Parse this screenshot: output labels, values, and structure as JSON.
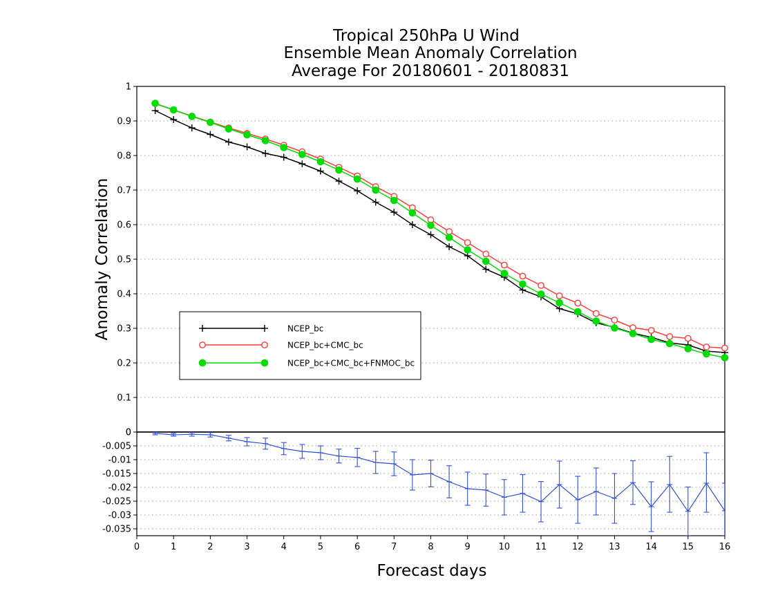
{
  "chart_data": [
    {
      "type": "line",
      "title": [
        "Tropical 250hPa U Wind",
        "Ensemble Mean Anomaly Correlation",
        "Average For 20180601 - 20180831"
      ],
      "xlabel": "Forecast days",
      "ylabel": "Anomaly Correlation",
      "xlim": [
        0,
        16
      ],
      "ylim": [
        0,
        1
      ],
      "x_ticks": [
        "0",
        "1",
        "2",
        "3",
        "4",
        "5",
        "6",
        "7",
        "8",
        "9",
        "10",
        "11",
        "12",
        "13",
        "14",
        "15",
        "16"
      ],
      "y_ticks": [
        "0",
        "0.1",
        "0.2",
        "0.3",
        "0.4",
        "0.5",
        "0.6",
        "0.7",
        "0.8",
        "0.9",
        "1"
      ],
      "grid": "horizontal dotted",
      "legend_position": "left-center",
      "x": [
        0.5,
        1,
        1.5,
        2,
        2.5,
        3,
        3.5,
        4,
        4.5,
        5,
        5.5,
        6,
        6.5,
        7,
        7.5,
        8,
        8.5,
        9,
        9.5,
        10,
        10.5,
        11,
        11.5,
        12,
        12.5,
        13,
        13.5,
        14,
        14.5,
        15,
        15.5,
        16
      ],
      "series": [
        {
          "name": "NCEP_bc",
          "color": "#000000",
          "marker": "plus",
          "values": [
            0.93,
            0.904,
            0.88,
            0.861,
            0.839,
            0.825,
            0.806,
            0.795,
            0.776,
            0.755,
            0.726,
            0.698,
            0.665,
            0.636,
            0.6,
            0.571,
            0.536,
            0.51,
            0.471,
            0.448,
            0.411,
            0.391,
            0.357,
            0.342,
            0.316,
            0.303,
            0.286,
            0.274,
            0.258,
            0.252,
            0.234,
            0.23
          ]
        },
        {
          "name": "NCEP_bc+CMC_bc",
          "color": "#ff3c3c",
          "marker": "open-circle",
          "values": [
            0.95,
            0.932,
            0.914,
            0.897,
            0.88,
            0.864,
            0.848,
            0.83,
            0.811,
            0.79,
            0.766,
            0.741,
            0.71,
            0.682,
            0.649,
            0.614,
            0.58,
            0.548,
            0.515,
            0.483,
            0.451,
            0.424,
            0.394,
            0.373,
            0.343,
            0.324,
            0.302,
            0.294,
            0.276,
            0.271,
            0.246,
            0.243
          ]
        },
        {
          "name": "NCEP_bc+CMC_bc+FNMOC_bc",
          "color": "#00dc00",
          "marker": "filled-circle",
          "values": [
            0.951,
            0.932,
            0.913,
            0.896,
            0.877,
            0.86,
            0.843,
            0.823,
            0.803,
            0.782,
            0.758,
            0.732,
            0.7,
            0.67,
            0.634,
            0.598,
            0.563,
            0.527,
            0.494,
            0.459,
            0.428,
            0.399,
            0.374,
            0.348,
            0.321,
            0.301,
            0.285,
            0.268,
            0.256,
            0.241,
            0.226,
            0.215
          ]
        }
      ]
    },
    {
      "type": "line",
      "title": "",
      "xlim": [
        0,
        16
      ],
      "ylim": [
        -0.0375,
        0
      ],
      "y_ticks": [
        "0",
        "-0.005",
        "-0.01",
        "-0.015",
        "-0.02",
        "-0.025",
        "-0.03",
        "-0.035"
      ],
      "grid": "horizontal dotted",
      "error_bars": true,
      "x": [
        0.5,
        1,
        1.5,
        2,
        2.5,
        3,
        3.5,
        4,
        4.5,
        5,
        5.5,
        6,
        6.5,
        7,
        7.5,
        8,
        8.5,
        9,
        9.5,
        10,
        10.5,
        11,
        11.5,
        12,
        12.5,
        13,
        13.5,
        14,
        14.5,
        15,
        15.5,
        16
      ],
      "series": [
        {
          "color": "#3050d8",
          "values": [
            -0.0005,
            -0.001,
            -0.0008,
            -0.001,
            -0.0022,
            -0.0035,
            -0.0042,
            -0.006,
            -0.007,
            -0.0075,
            -0.0087,
            -0.0092,
            -0.011,
            -0.0115,
            -0.0155,
            -0.015,
            -0.018,
            -0.0205,
            -0.021,
            -0.0236,
            -0.0222,
            -0.0252,
            -0.019,
            -0.0245,
            -0.0215,
            -0.024,
            -0.0183,
            -0.027,
            -0.019,
            -0.0287,
            -0.0185,
            -0.0285
          ],
          "error_low": [
            -0.001,
            -0.0015,
            -0.0015,
            -0.0018,
            -0.0032,
            -0.005,
            -0.0062,
            -0.0082,
            -0.0095,
            -0.01,
            -0.0112,
            -0.0125,
            -0.015,
            -0.0158,
            -0.021,
            -0.0198,
            -0.0238,
            -0.0265,
            -0.0268,
            -0.03,
            -0.029,
            -0.0325,
            -0.0275,
            -0.033,
            -0.03,
            -0.033,
            -0.0262,
            -0.036,
            -0.029,
            -0.0375,
            -0.029,
            -0.0375
          ],
          "error_high": [
            0.0,
            -0.0005,
            -0.0002,
            -0.0002,
            -0.0012,
            -0.002,
            -0.0022,
            -0.0038,
            -0.0045,
            -0.005,
            -0.0062,
            -0.0059,
            -0.007,
            -0.0072,
            -0.01,
            -0.0102,
            -0.0122,
            -0.0145,
            -0.0152,
            -0.0172,
            -0.0154,
            -0.0179,
            -0.0105,
            -0.016,
            -0.013,
            -0.015,
            -0.0104,
            -0.018,
            -0.0088,
            -0.0199,
            -0.0075,
            -0.0185
          ]
        }
      ]
    }
  ]
}
